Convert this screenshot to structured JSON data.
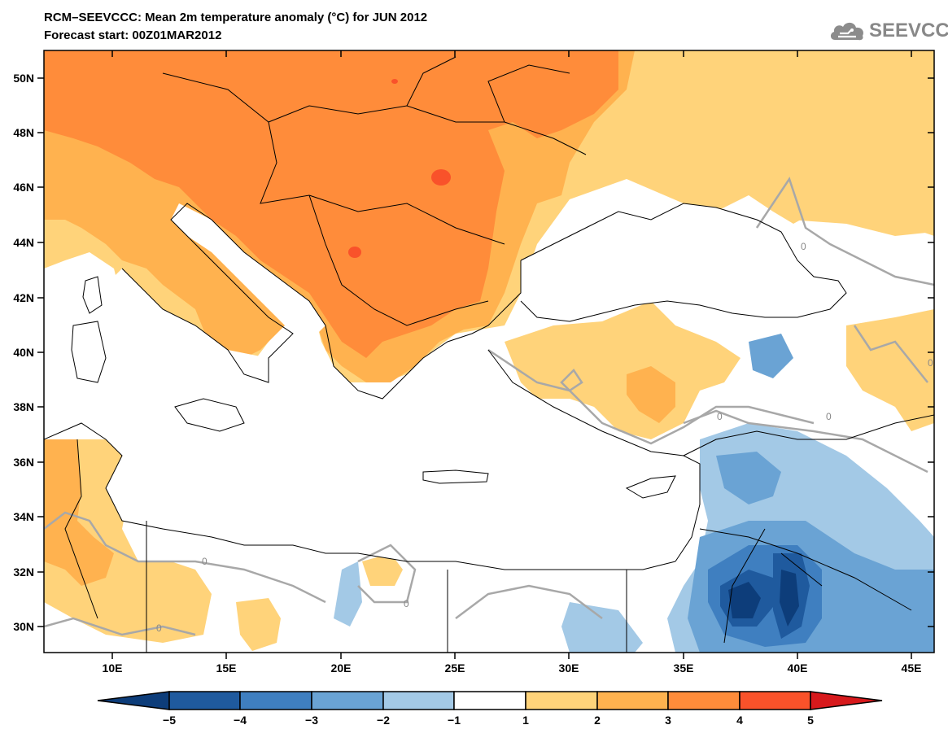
{
  "header": {
    "title": "RCM–SEEVCCC: Mean 2m temperature anomaly (°C) for JUN 2012",
    "subtitle": "Forecast start: 00Z01MAR2012"
  },
  "logo": {
    "text": "SEEVCCC",
    "icon": "cloud-icon"
  },
  "map": {
    "lon_range": [
      7,
      46
    ],
    "lat_range": [
      29,
      51
    ],
    "lat_ticks": [
      "50N",
      "48N",
      "46N",
      "44N",
      "42N",
      "40N",
      "38N",
      "36N",
      "34N",
      "32N",
      "30N"
    ],
    "lon_ticks": [
      "10E",
      "15E",
      "20E",
      "25E",
      "30E",
      "35E",
      "40E",
      "45E"
    ],
    "contour_labels": [
      "0",
      "0",
      "0",
      "0",
      "0",
      "0",
      "0"
    ]
  },
  "colorbar": {
    "ticks": [
      "−5",
      "−4",
      "−3",
      "−2",
      "−1",
      "1",
      "2",
      "3",
      "4",
      "5"
    ],
    "colors": {
      "below_min": "#0d3d7a",
      "c1": "#1f5a9e",
      "c2": "#3f7fc0",
      "c3": "#6aa3d4",
      "c4": "#a3c9e6",
      "c5": "#ffffff",
      "c6": "#ffd37a",
      "c7": "#ffb24f",
      "c8": "#ff8c3a",
      "c9": "#f9522a",
      "above_max": "#d7191c"
    }
  }
}
